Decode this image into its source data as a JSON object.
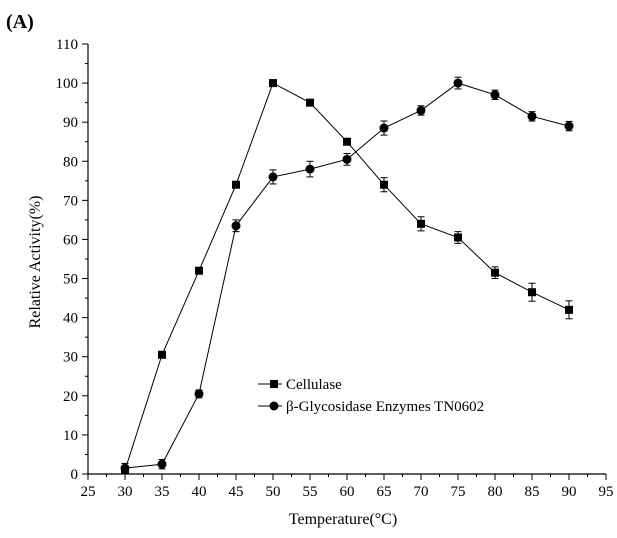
{
  "chart_data": {
    "type": "line",
    "panel_label": "(A)",
    "title": "",
    "xlabel": "Temperature(°C)",
    "ylabel": "Relative Activity(%)",
    "xlim": [
      25,
      95
    ],
    "ylim": [
      0,
      110
    ],
    "xticks": [
      "25",
      "30",
      "35",
      "40",
      "45",
      "50",
      "55",
      "60",
      "65",
      "70",
      "75",
      "80",
      "85",
      "90",
      "95"
    ],
    "yticks": [
      "0",
      "10",
      "20",
      "30",
      "40",
      "50",
      "60",
      "70",
      "80",
      "90",
      "100",
      "110"
    ],
    "grid": false,
    "legend_position": "lower-center",
    "x": [
      30,
      35,
      40,
      45,
      50,
      55,
      60,
      65,
      70,
      75,
      80,
      85,
      90
    ],
    "series": [
      {
        "name": "Cellulase",
        "marker": "square",
        "color": "#000000",
        "values": [
          1,
          30.5,
          52,
          74,
          100,
          95,
          85,
          74,
          64,
          60.5,
          51.5,
          46.5,
          42
        ],
        "errors": [
          0,
          0,
          0,
          0,
          0,
          0,
          0,
          1.8,
          1.8,
          1.5,
          1.5,
          2.3,
          2.3
        ]
      },
      {
        "name": "β-Glycosidase Enzymes TN0602",
        "marker": "circle",
        "color": "#000000",
        "values": [
          1.5,
          2.5,
          20.5,
          63.5,
          76,
          78,
          80.5,
          88.5,
          93,
          100,
          97,
          91.5,
          89
        ],
        "errors": [
          1.2,
          1.2,
          1.0,
          1.5,
          1.8,
          2.0,
          1.5,
          1.8,
          1.2,
          1.5,
          1.2,
          1.2,
          1.2
        ]
      }
    ]
  }
}
